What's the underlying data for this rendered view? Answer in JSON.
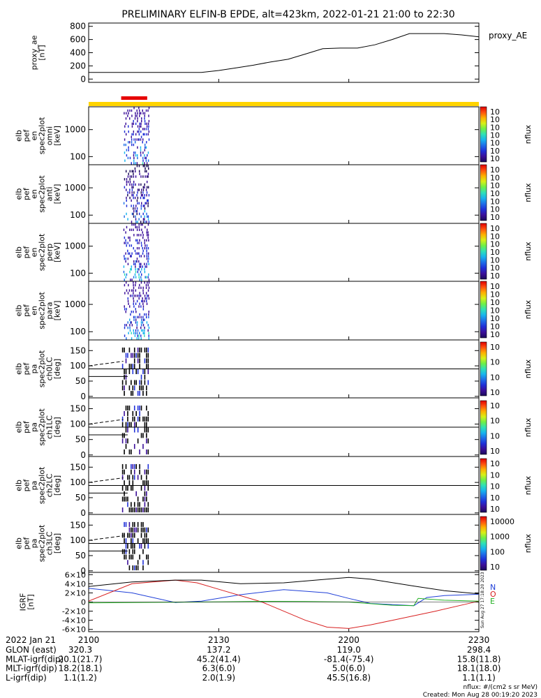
{
  "title": "PRELIMINARY ELFIN-B EPDE, alt=423km, 2022-01-21 21:00 to 22:30",
  "colors": {
    "line": "#000000",
    "ae_line": "#000000",
    "sci_bar": "#ffd400",
    "sci_mark": "#e60000",
    "bn": "#1f3fd8",
    "bo": "#d81f1f",
    "be": "#22b022",
    "bmag": "#000000"
  },
  "time_axis": {
    "start_min": 0,
    "end_min": 90,
    "ticks": [
      {
        "t": 0,
        "label": "2100"
      },
      {
        "t": 30,
        "label": "2130"
      },
      {
        "t": 60,
        "label": "2200"
      },
      {
        "t": 90,
        "label": "2230"
      }
    ],
    "sci_zone": {
      "start": 0,
      "end": 90
    },
    "data_window": {
      "start": 8,
      "end": 14
    },
    "red_mark": {
      "start": 7.5,
      "end": 13.5
    }
  },
  "ephemeris": {
    "date_label": "2022 Jan 21",
    "rows": [
      {
        "label": "GLON (east)",
        "values": [
          "320.3",
          "137.2",
          "119.0",
          "298.4"
        ]
      },
      {
        "label": "MLAT-igrf(dip)",
        "values": [
          "20.1(21.7)",
          "45.2(41.4)",
          "-81.4(-75.4)",
          "15.8(11.8)"
        ]
      },
      {
        "label": "MLT-igrf(dip)",
        "values": [
          "18.2(18.1)",
          "6.3(6.0)",
          "5.0(6.0)",
          "18.1(18.0)"
        ]
      },
      {
        "label": "L-igrf(dip)",
        "values": [
          "1.1(1.2)",
          "2.0(1.9)",
          "45.5(16.8)",
          "1.1(1.1)"
        ]
      }
    ]
  },
  "footer": {
    "units": "nflux: #/(cm2 s sr MeV)",
    "created": "Created: Mon Aug 28 00:19:20 2023",
    "side_stamp": "Sun Aug 27 17:18:20 2023"
  },
  "panels": [
    {
      "id": "ae",
      "ylabel": [
        "proxy_ae",
        "[nT]"
      ],
      "ticks": [
        {
          "v": 0,
          "label": "0"
        },
        {
          "v": 200,
          "label": "200"
        },
        {
          "v": 400,
          "label": "400"
        },
        {
          "v": 600,
          "label": "600"
        },
        {
          "v": 800,
          "label": "800"
        }
      ],
      "ylim": [
        -50,
        850
      ],
      "legend": "proxy_AE"
    },
    {
      "id": "en-omni",
      "kind": "energy",
      "ylabel": [
        "elb",
        "pef",
        "en",
        "spec2plot",
        "omni",
        "[keV]"
      ],
      "ticks": [
        {
          "v": 1000,
          "label": "1000"
        },
        {
          "v": 100,
          "label": "100"
        }
      ],
      "cb": {
        "labels": [
          "10<sup>7</sup>",
          "10<sup>6</sup>",
          "10<sup>5</sup>",
          "10<sup>4</sup>",
          "10<sup>3</sup>",
          "10<sup>2</sup>",
          "10<sup>1</sup>"
        ],
        "title": "nflux"
      }
    },
    {
      "id": "en-anti",
      "kind": "energy",
      "ylabel": [
        "elb",
        "pef",
        "en",
        "spec2plot",
        "anti",
        "[keV]"
      ],
      "ticks": [
        {
          "v": 1000,
          "label": "1000"
        },
        {
          "v": 100,
          "label": "100"
        }
      ],
      "cb": {
        "labels": [
          "10<sup>7</sup>",
          "10<sup>6</sup>",
          "10<sup>5</sup>",
          "10<sup>4</sup>",
          "10<sup>3</sup>",
          "10<sup>2</sup>",
          "10<sup>1</sup>"
        ],
        "title": "nflux"
      }
    },
    {
      "id": "en-perp",
      "kind": "energy",
      "ylabel": [
        "elb",
        "pef",
        "en",
        "spec2plot",
        "perp",
        "[keV]"
      ],
      "ticks": [
        {
          "v": 1000,
          "label": "1000"
        },
        {
          "v": 100,
          "label": "100"
        }
      ],
      "cb": {
        "labels": [
          "10<sup>7</sup>",
          "10<sup>6</sup>",
          "10<sup>5</sup>",
          "10<sup>4</sup>",
          "10<sup>3</sup>",
          "10<sup>2</sup>",
          "10<sup>1</sup>"
        ],
        "title": "nflux"
      }
    },
    {
      "id": "en-para",
      "kind": "energy",
      "ylabel": [
        "elb",
        "pef",
        "en",
        "spec2plot",
        "para",
        "[keV]"
      ],
      "ticks": [
        {
          "v": 1000,
          "label": "1000"
        },
        {
          "v": 100,
          "label": "100"
        }
      ],
      "cb": {
        "labels": [
          "10<sup>7</sup>",
          "10<sup>6</sup>",
          "10<sup>5</sup>",
          "10<sup>4</sup>",
          "10<sup>3</sup>",
          "10<sup>2</sup>",
          "10<sup>1</sup>"
        ],
        "title": "nflux"
      }
    },
    {
      "id": "pa-ch0",
      "kind": "pa",
      "ylabel": [
        "elb",
        "pef",
        "pa",
        "spec2plot",
        "ch0LC",
        "[deg]"
      ],
      "ticks": [
        {
          "v": 0,
          "label": "0"
        },
        {
          "v": 50,
          "label": "50"
        },
        {
          "v": 100,
          "label": "100"
        },
        {
          "v": 150,
          "label": "150"
        }
      ],
      "cb": {
        "labels": [
          "10<sup>7</sup>",
          "10<sup>6</sup>",
          "10<sup>5</sup>",
          "10<sup>4</sup>"
        ],
        "title": "nflux"
      }
    },
    {
      "id": "pa-ch1",
      "kind": "pa",
      "ylabel": [
        "elb",
        "pef",
        "pa",
        "spec2plot",
        "ch1LC",
        "[deg]"
      ],
      "ticks": [
        {
          "v": 0,
          "label": "0"
        },
        {
          "v": 50,
          "label": "50"
        },
        {
          "v": 100,
          "label": "100"
        },
        {
          "v": 150,
          "label": "150"
        }
      ],
      "cb": {
        "labels": [
          "10<sup>6</sup>",
          "10<sup>5</sup>",
          "10<sup>4</sup>",
          "10<sup>3</sup>"
        ],
        "title": "nflux"
      }
    },
    {
      "id": "pa-ch2",
      "kind": "pa",
      "ylabel": [
        "elb",
        "pef",
        "pa",
        "spec2plot",
        "ch2LC",
        "[deg]"
      ],
      "ticks": [
        {
          "v": 0,
          "label": "0"
        },
        {
          "v": 50,
          "label": "50"
        },
        {
          "v": 100,
          "label": "100"
        },
        {
          "v": 150,
          "label": "150"
        }
      ],
      "cb": {
        "labels": [
          "10<sup>6</sup>",
          "10<sup>5</sup>",
          "10<sup>4</sup>",
          "10<sup>3</sup>",
          "10<sup>2</sup>"
        ],
        "title": "nflux"
      }
    },
    {
      "id": "pa-ch3",
      "kind": "pa",
      "ylabel": [
        "elb",
        "pef",
        "pa",
        "spec2plot",
        "ch3LC",
        "[deg]"
      ],
      "ticks": [
        {
          "v": 0,
          "label": "0"
        },
        {
          "v": 50,
          "label": "50"
        },
        {
          "v": 100,
          "label": "100"
        },
        {
          "v": 150,
          "label": "150"
        }
      ],
      "cb": {
        "labels": [
          "10000",
          "1000",
          "100",
          "10"
        ],
        "title": "nflux"
      }
    },
    {
      "id": "igrf",
      "ylabel": [
        "IGRF",
        "[nT]"
      ],
      "ticks": [
        {
          "v": 60000,
          "label": "6×10<sup>4</sup>"
        },
        {
          "v": 40000,
          "label": "4×10<sup>4</sup>"
        },
        {
          "v": 20000,
          "label": "2×10<sup>4</sup>"
        },
        {
          "v": 0,
          "label": "0"
        },
        {
          "v": -20000,
          "label": "-2×10<sup>4</sup>"
        },
        {
          "v": -40000,
          "label": "-4×10<sup>4</sup>"
        },
        {
          "v": -60000,
          "label": "-6×10<sup>4</sup>"
        }
      ],
      "ylim": [
        -65000,
        65000
      ],
      "legend": [
        "N",
        "O",
        "E"
      ]
    }
  ],
  "chart_data": [
    {
      "type": "line",
      "title": "",
      "xlabel": "",
      "ylabel": "proxy_ae [nT]",
      "ylim": [
        -50,
        850
      ],
      "series": [
        {
          "name": "proxy_AE",
          "x": [
            0,
            10,
            20,
            26,
            30,
            34,
            38,
            42,
            46,
            50,
            54,
            58,
            62,
            66,
            70,
            74,
            78,
            82,
            86,
            90
          ],
          "values": [
            100,
            100,
            100,
            100,
            130,
            170,
            210,
            260,
            300,
            380,
            460,
            470,
            470,
            520,
            600,
            690,
            690,
            690,
            670,
            640
          ]
        }
      ]
    },
    {
      "type": "line",
      "title": "",
      "xlabel": "",
      "ylabel": "IGRF [nT]",
      "ylim": [
        -65000,
        65000
      ],
      "series": [
        {
          "name": "N",
          "x": [
            0,
            10,
            20,
            26,
            35,
            45,
            55,
            60,
            65,
            75,
            78,
            82,
            90
          ],
          "values": [
            30000,
            20000,
            -1000,
            2000,
            16000,
            27000,
            20000,
            8000,
            -3000,
            -8000,
            10000,
            14000,
            17000
          ]
        },
        {
          "name": "O",
          "x": [
            0,
            10,
            20,
            25,
            30,
            40,
            50,
            55,
            60,
            65,
            70,
            80,
            90
          ],
          "values": [
            2000,
            40000,
            48000,
            42000,
            28000,
            0,
            -40000,
            -55000,
            -58000,
            -50000,
            -40000,
            -20000,
            2000
          ]
        },
        {
          "name": "E",
          "x": [
            0,
            10,
            20,
            30,
            40,
            50,
            60,
            70,
            75,
            76,
            82,
            90
          ],
          "values": [
            -2000,
            -1000,
            -500,
            500,
            1500,
            1000,
            0,
            -7000,
            -8000,
            8000,
            4000,
            2000
          ]
        },
        {
          "name": "",
          "x": [
            0,
            10,
            20,
            26,
            35,
            45,
            55,
            60,
            65,
            75,
            82,
            90
          ],
          "values": [
            34000,
            44000,
            48000,
            48000,
            40000,
            42000,
            50000,
            54000,
            50000,
            35000,
            25000,
            18000
          ]
        }
      ]
    }
  ]
}
